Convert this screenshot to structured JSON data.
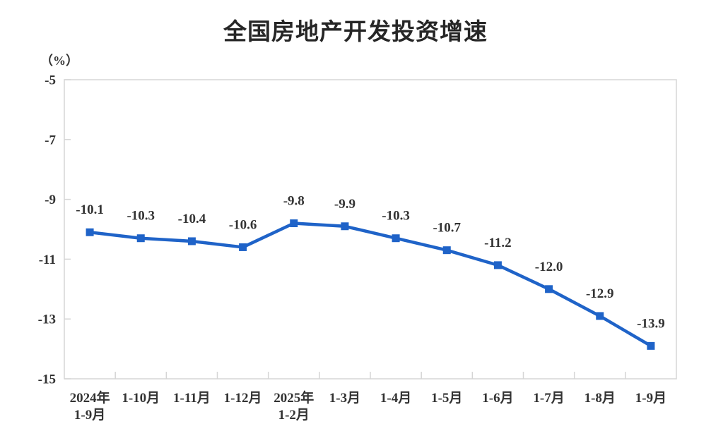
{
  "chart_data": {
    "type": "line",
    "title": "全国房地产开发投资增速",
    "ylabel": "（%）",
    "xlabel": "",
    "categories": [
      "2024年\n1-9月",
      "1-10月",
      "1-11月",
      "1-12月",
      "2025年\n1-2月",
      "1-3月",
      "1-4月",
      "1-5月",
      "1-6月",
      "1-7月",
      "1-8月",
      "1-9月"
    ],
    "values": [
      -10.1,
      -10.3,
      -10.4,
      -10.6,
      -9.8,
      -9.9,
      -10.3,
      -10.7,
      -11.2,
      -12.0,
      -12.9,
      -13.9
    ],
    "data_labels": [
      "-10.1",
      "-10.3",
      "-10.4",
      "-10.6",
      "-9.8",
      "-9.9",
      "-10.3",
      "-10.7",
      "-11.2",
      "-12.0",
      "-12.9",
      "-13.9"
    ],
    "yticks": [
      -5,
      -7,
      -9,
      -11,
      -13,
      -15
    ],
    "ylim": [
      -15,
      -5
    ],
    "grid": false,
    "legend": "none",
    "marker": "square",
    "colors": {
      "line": "#1f63c8",
      "marker": "#1f63c8",
      "axis": "#d5d5d5",
      "tick_text": "#333333",
      "data_label_text": "#333333",
      "title_text": "#262626"
    }
  }
}
